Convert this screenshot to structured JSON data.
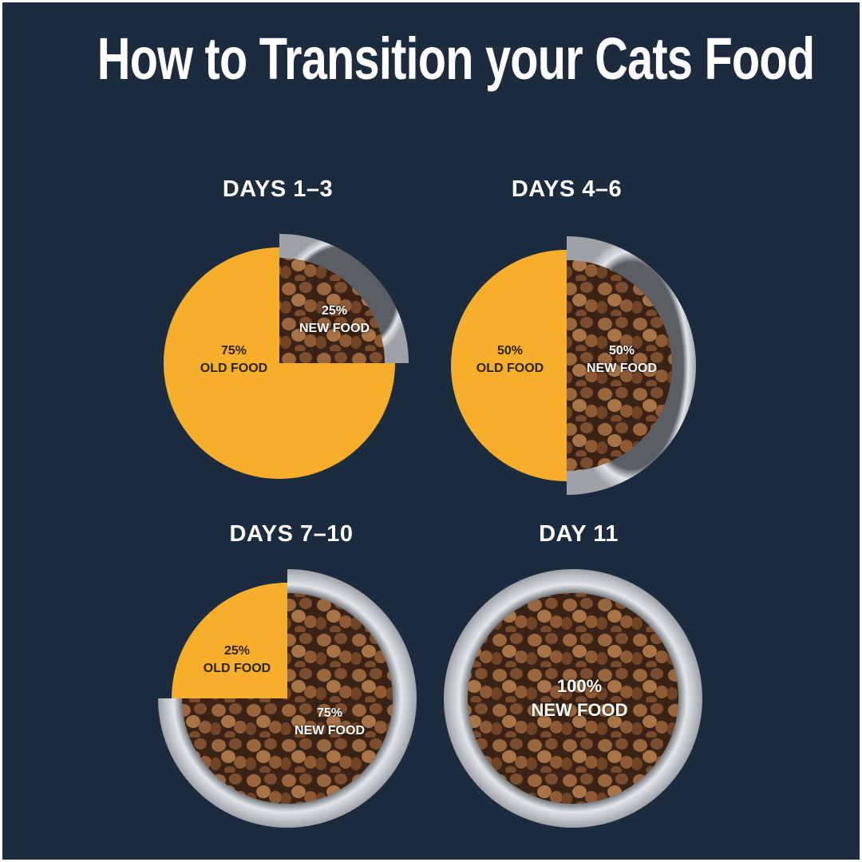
{
  "title": "How to Transition your Cats Food",
  "colors": {
    "background": "#1c2b3e",
    "old_food": "#f7ae2a",
    "bowl": "#c9ccd0",
    "kibble": "#8a5a36"
  },
  "chart_data": [
    {
      "type": "pie",
      "title": "DAYS 1–3",
      "slices": [
        {
          "label": "OLD FOOD",
          "value": 75,
          "pct": "75%"
        },
        {
          "label": "NEW FOOD",
          "value": 25,
          "pct": "25%"
        }
      ]
    },
    {
      "type": "pie",
      "title": "DAYS 4–6",
      "slices": [
        {
          "label": "OLD FOOD",
          "value": 50,
          "pct": "50%"
        },
        {
          "label": "NEW FOOD",
          "value": 50,
          "pct": "50%"
        }
      ]
    },
    {
      "type": "pie",
      "title": "DAYS 7–10",
      "slices": [
        {
          "label": "OLD FOOD",
          "value": 25,
          "pct": "25%"
        },
        {
          "label": "NEW FOOD",
          "value": 75,
          "pct": "75%"
        }
      ]
    },
    {
      "type": "pie",
      "title": "DAY 11",
      "slices": [
        {
          "label": "NEW FOOD",
          "value": 100,
          "pct": "100%"
        }
      ]
    }
  ]
}
